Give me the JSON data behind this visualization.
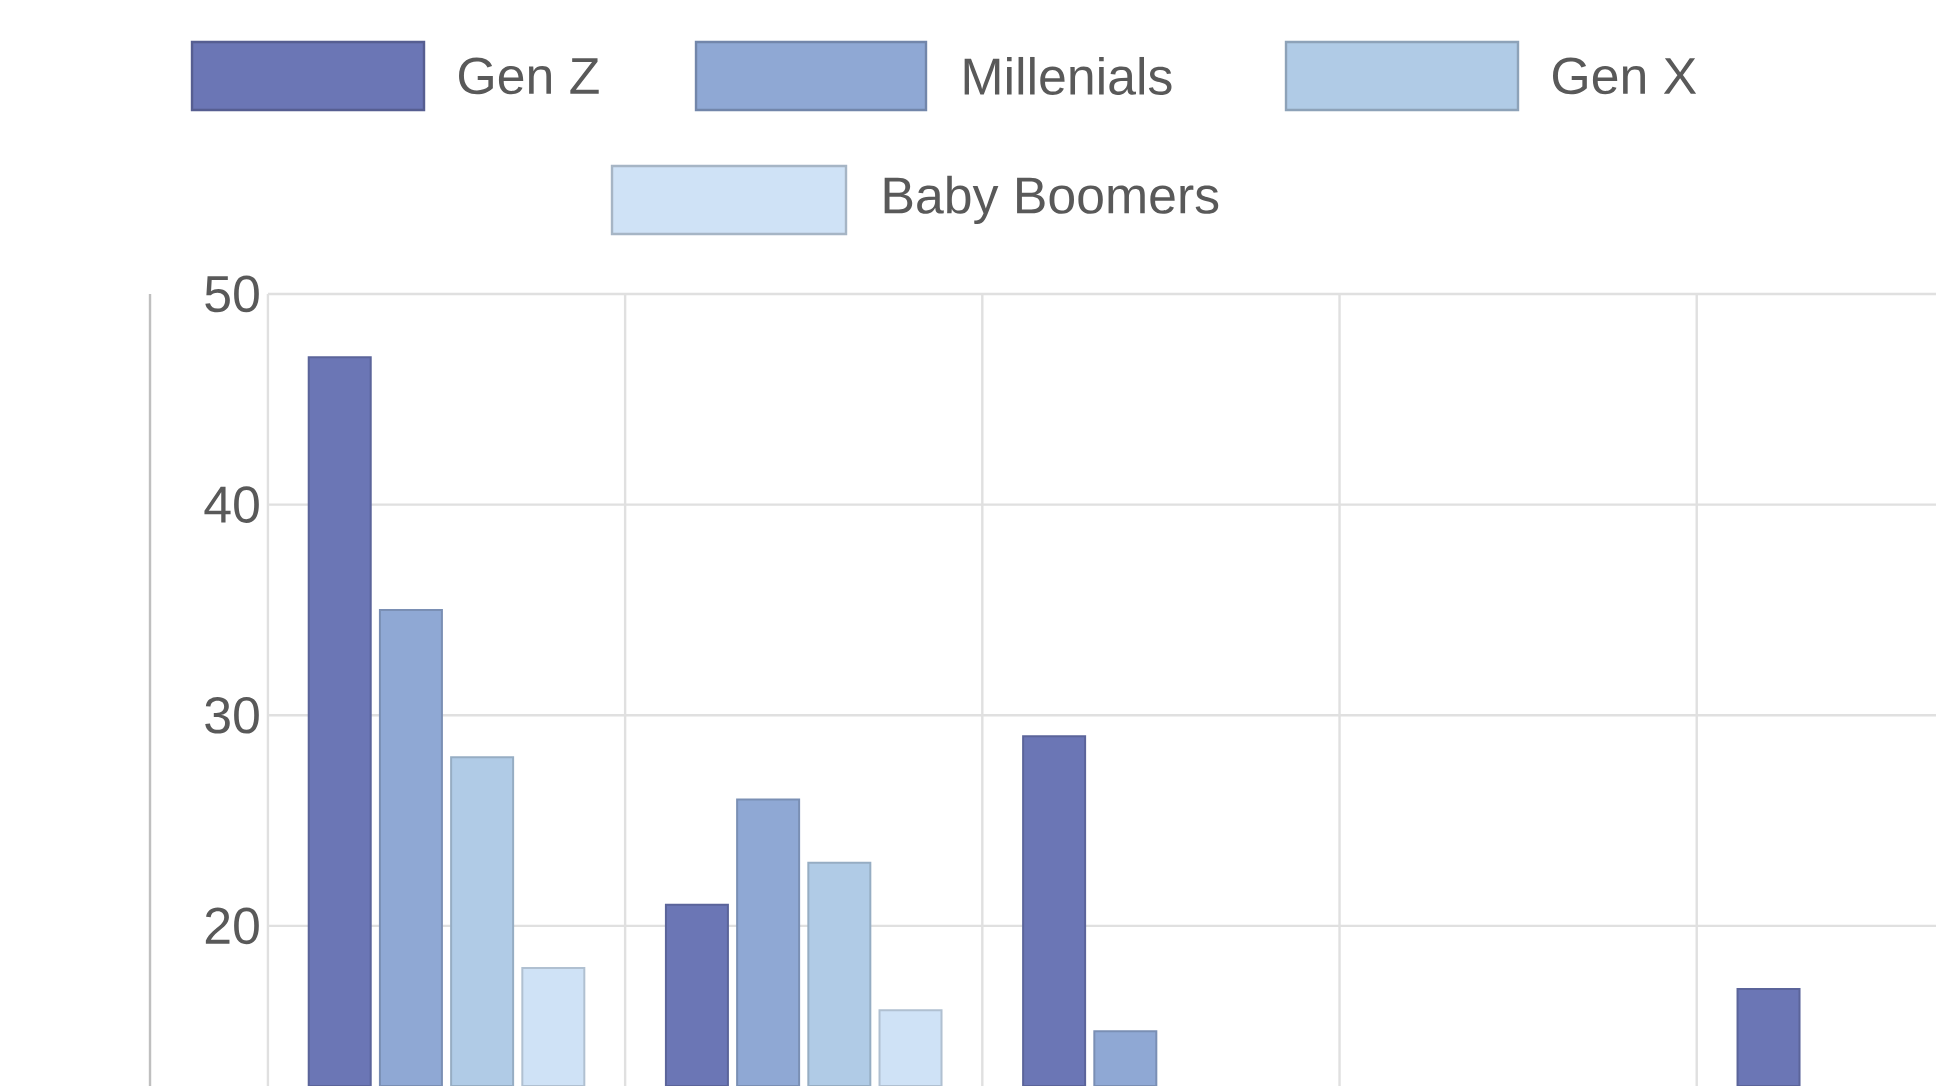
{
  "chart_data": {
    "type": "bar",
    "categories": [
      null,
      null,
      null,
      null,
      null
    ],
    "series": [
      {
        "name": "Gen Z",
        "color": "#6b76b5",
        "values": [
          47,
          21,
          29,
          null,
          17
        ]
      },
      {
        "name": "Millenials",
        "color": "#8fa8d4",
        "values": [
          35,
          26,
          15,
          null,
          null
        ]
      },
      {
        "name": "Gen X",
        "color": "#b0cbe6",
        "values": [
          28,
          23,
          null,
          null,
          null
        ]
      },
      {
        "name": "Baby Boomers",
        "color": "#cfe2f6",
        "values": [
          18,
          16,
          null,
          null,
          null
        ]
      }
    ],
    "ylim": [
      12.4,
      50
    ],
    "yticks": [
      20,
      30,
      40,
      50
    ],
    "grid": true,
    "legend": "top",
    "tick_labels": "y"
  }
}
